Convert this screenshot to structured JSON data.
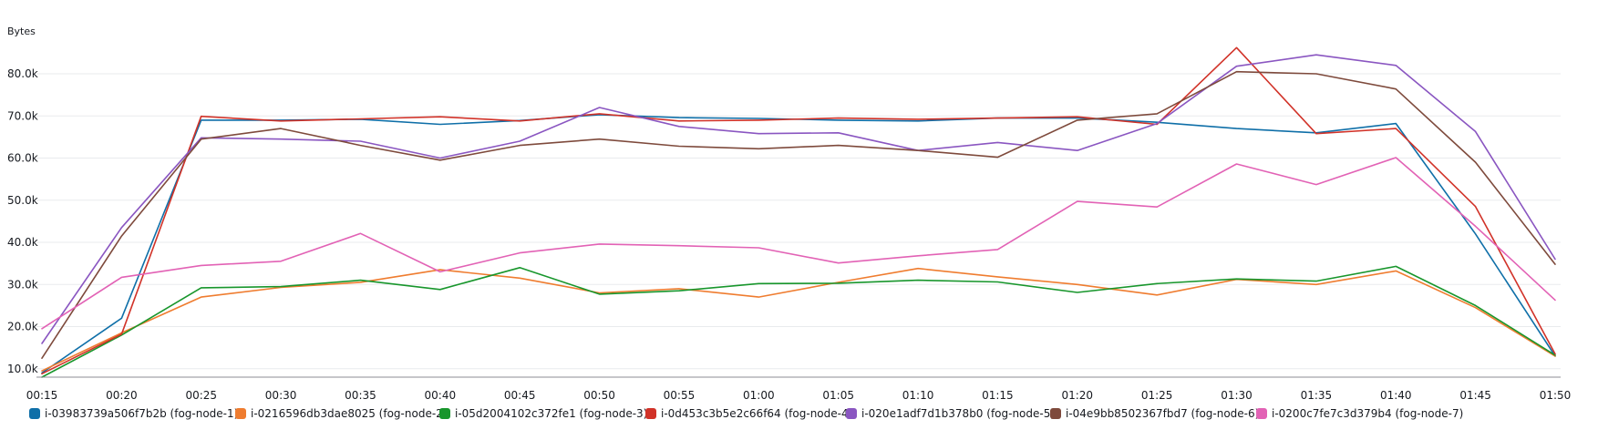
{
  "chart_data": {
    "type": "line",
    "ylabel": "Bytes",
    "ylim": [
      8000,
      88000
    ],
    "yticks": [
      10000,
      20000,
      30000,
      40000,
      50000,
      60000,
      70000,
      80000
    ],
    "ytick_labels": [
      "10.0k",
      "20.0k",
      "30.0k",
      "40.0k",
      "50.0k",
      "60.0k",
      "70.0k",
      "80.0k"
    ],
    "x": [
      "00:15",
      "00:20",
      "00:25",
      "00:30",
      "00:35",
      "00:40",
      "00:45",
      "00:50",
      "00:55",
      "01:00",
      "01:05",
      "01:10",
      "01:15",
      "01:20",
      "01:25",
      "01:30",
      "01:35",
      "01:40",
      "01:45",
      "01:50"
    ],
    "grid": true,
    "legend_position": "bottom",
    "series": [
      {
        "name": "i-03983739a506f7b2b (fog-node-1)",
        "color": "#0f6fa8",
        "values": [
          9000,
          22000,
          69000,
          69000,
          69200,
          68000,
          68900,
          70300,
          69600,
          69400,
          69000,
          68800,
          69500,
          69500,
          68500,
          67000,
          66000,
          68200,
          42000,
          13000
        ]
      },
      {
        "name": "i-0216596db3dae8025 (fog-node-2)",
        "color": "#ef7c2f",
        "values": [
          9500,
          18500,
          27000,
          29300,
          30500,
          33500,
          31500,
          28000,
          29000,
          27000,
          30500,
          33800,
          31800,
          30000,
          27500,
          31200,
          30000,
          33200,
          24500,
          13000
        ]
      },
      {
        "name": "i-05d2004102c372fe1 (fog-node-3)",
        "color": "#18962c",
        "values": [
          8000,
          18000,
          29200,
          29500,
          31000,
          28800,
          34000,
          27700,
          28500,
          30200,
          30300,
          31000,
          30600,
          28100,
          30200,
          31300,
          30800,
          34300,
          25000,
          13200
        ]
      },
      {
        "name": "i-0d453c3b5e2c66f64 (fog-node-4)",
        "color": "#d13228",
        "values": [
          8800,
          18200,
          69900,
          68800,
          69300,
          69800,
          68800,
          70500,
          68800,
          69000,
          69500,
          69200,
          69500,
          69800,
          68000,
          86200,
          65800,
          67000,
          48500,
          13500
        ]
      },
      {
        "name": "i-020e1adf7d1b378b0 (fog-node-5)",
        "color": "#8a56c1",
        "values": [
          16000,
          43500,
          64800,
          64500,
          64000,
          60000,
          64000,
          72000,
          67500,
          65800,
          66000,
          61800,
          63700,
          61800,
          68200,
          81800,
          84500,
          82000,
          66300,
          36000
        ]
      },
      {
        "name": "i-04e9bb8502367fbd7 (fog-node-6)",
        "color": "#7e4a3c",
        "values": [
          12500,
          41500,
          64500,
          67000,
          63000,
          59500,
          63000,
          64500,
          62800,
          62200,
          63000,
          61800,
          60200,
          69000,
          70500,
          80500,
          80000,
          76400,
          59000,
          34800
        ]
      },
      {
        "name": "i-0200c7fe7c3d379b4 (fog-node-7)",
        "color": "#e262b5",
        "values": [
          19500,
          31700,
          34500,
          35500,
          42100,
          33000,
          37500,
          39600,
          39200,
          38700,
          35100,
          36800,
          38300,
          49700,
          48400,
          58600,
          53700,
          60100,
          43800,
          26300
        ]
      }
    ]
  }
}
